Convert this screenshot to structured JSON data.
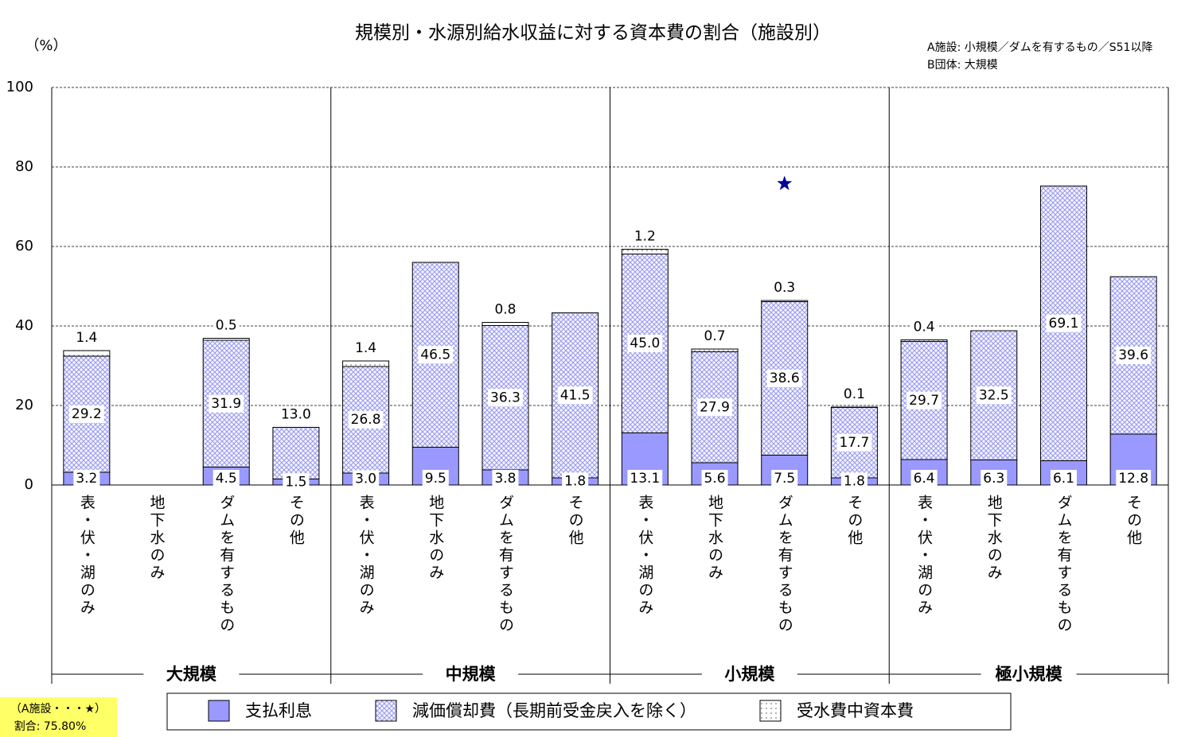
{
  "chart_data": {
    "type": "stacked_bar",
    "title": "規模別・水源別給水収益に対する資本費の割合（施設別）",
    "y_unit": "（%）",
    "notes": [
      "A施設: 小規模／ダムを有するもの／S51以降",
      "B団体: 大規模"
    ],
    "groups": [
      "大規模",
      "中規模",
      "小規模",
      "極小規模"
    ],
    "categories": [
      "表・伏・湖のみ",
      "地下水のみ",
      "ダムを有するもの",
      "その他",
      "表・伏・湖のみ",
      "地下水のみ",
      "ダムを有するもの",
      "その他",
      "表・伏・湖のみ",
      "地下水のみ",
      "ダムを有するもの",
      "その他",
      "表・伏・湖のみ",
      "地下水のみ",
      "ダムを有するもの",
      "その他"
    ],
    "series": [
      {
        "name": "支払利息",
        "color": "#9999ff",
        "pattern": "solid",
        "values": [
          3.2,
          null,
          4.5,
          1.5,
          3.0,
          9.5,
          3.8,
          1.8,
          13.1,
          5.6,
          7.5,
          1.8,
          6.4,
          6.3,
          6.1,
          12.8
        ],
        "value_labels": [
          "3.2",
          null,
          "4.5",
          "1.5",
          "3.0",
          "9.5",
          "3.8",
          "1.8",
          "13.1",
          "5.6",
          "7.5",
          "1.8",
          "6.4",
          "6.3",
          "6.1",
          "12.8"
        ]
      },
      {
        "name": "減価償却費（長期前受金戻入を除く）",
        "color": "#9999ee",
        "pattern": "crosshatch",
        "values": [
          29.2,
          null,
          31.9,
          13.0,
          26.8,
          46.5,
          36.3,
          41.5,
          45.0,
          27.9,
          38.6,
          17.7,
          29.7,
          32.5,
          69.1,
          39.6
        ],
        "value_labels": [
          "29.2",
          null,
          "31.9",
          "13.0",
          "26.8",
          "46.5",
          "36.3",
          "41.5",
          "45.0",
          "27.9",
          "38.6",
          "17.7",
          "29.7",
          "32.5",
          "69.1",
          "39.6"
        ]
      },
      {
        "name": "受水費中資本費",
        "color": "#555555",
        "pattern": "dots",
        "values": [
          1.4,
          null,
          0.5,
          null,
          1.4,
          null,
          0.8,
          null,
          1.2,
          0.7,
          0.3,
          0.1,
          0.4,
          null,
          null,
          null
        ],
        "value_labels": [
          "1.4",
          null,
          "0.5",
          null,
          "1.4",
          null,
          "0.8",
          null,
          "1.2",
          "0.7",
          "0.3",
          "0.1",
          "0.4",
          null,
          null,
          null
        ]
      }
    ],
    "star": {
      "group": "小規模",
      "category": "ダムを有するもの",
      "value": 75.8,
      "color": "#000099",
      "legend": "（A施設・・・★）",
      "label": "割合: 75.80%"
    },
    "ylim": [
      0,
      100
    ],
    "yticks": [
      0,
      20,
      40,
      60,
      80,
      100
    ],
    "grid": true
  }
}
